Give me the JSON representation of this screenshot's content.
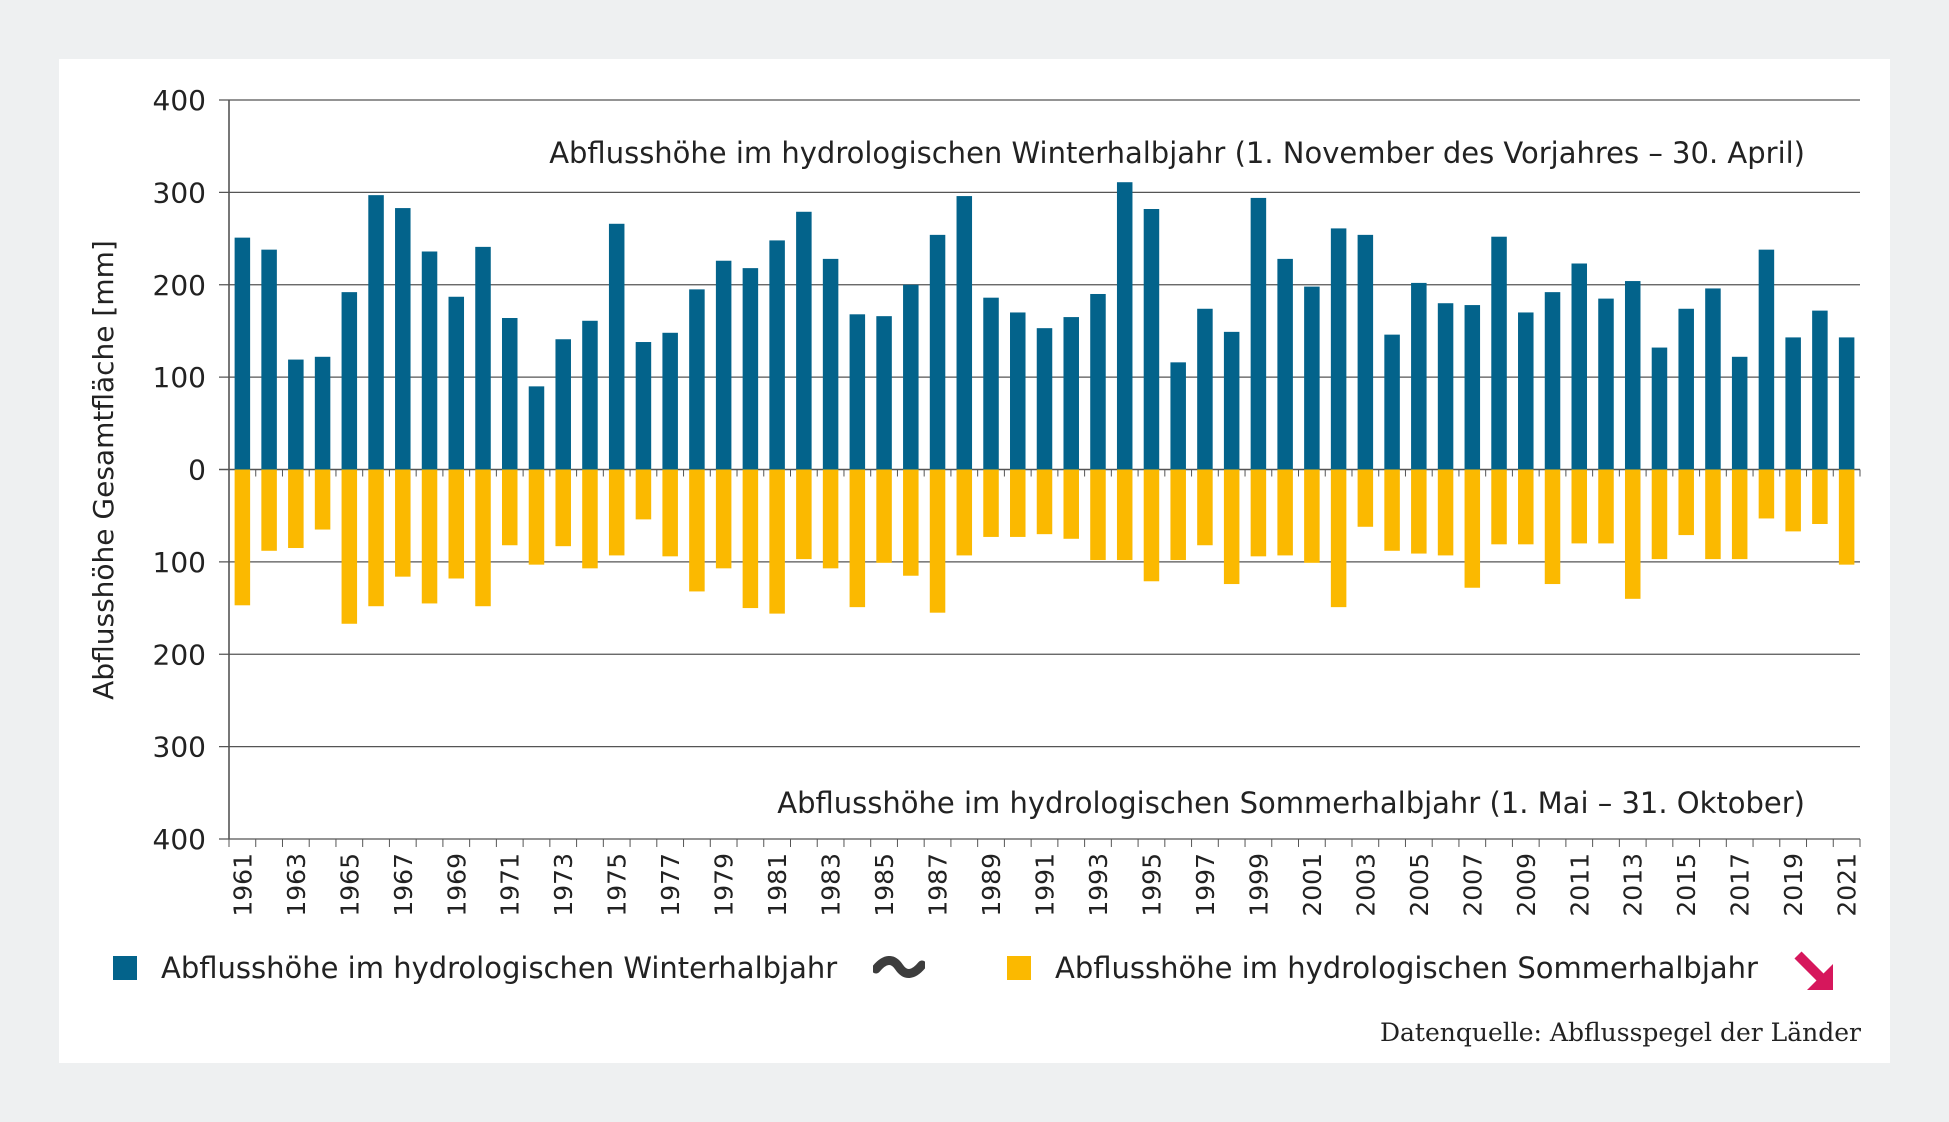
{
  "colors": {
    "winter": "#03638b",
    "summer": "#fbb900",
    "trend_winter": "#3d3d3d",
    "trend_summer": "#d6175c",
    "grid": "#555555"
  },
  "chart_data": {
    "type": "bar",
    "ylabel": "Abflusshöhe Gesamtfläche  [mm]",
    "ylim": [
      -400,
      400
    ],
    "y_ticks": [
      400,
      300,
      200,
      100,
      0,
      100,
      200,
      300,
      400
    ],
    "grid": true,
    "annotation_winter": "Abflusshöhe im hydrologischen Winterhalbjahr (1. November des Vorjahres – 30. April)",
    "annotation_summer": "Abflusshöhe im hydrologischen Sommerhalbjahr (1. Mai – 31. Oktober)",
    "x": [
      1961,
      1962,
      1963,
      1964,
      1965,
      1966,
      1967,
      1968,
      1969,
      1970,
      1971,
      1972,
      1973,
      1974,
      1975,
      1976,
      1977,
      1978,
      1979,
      1980,
      1981,
      1982,
      1983,
      1984,
      1985,
      1986,
      1987,
      1988,
      1989,
      1990,
      1991,
      1992,
      1993,
      1994,
      1995,
      1996,
      1997,
      1998,
      1999,
      2000,
      2001,
      2002,
      2003,
      2004,
      2005,
      2006,
      2007,
      2008,
      2009,
      2010,
      2011,
      2012,
      2013,
      2014,
      2015,
      2016,
      2017,
      2018,
      2019,
      2020,
      2021
    ],
    "x_tick_labels": [
      "1961",
      "1963",
      "1965",
      "1967",
      "1969",
      "1971",
      "1973",
      "1975",
      "1977",
      "1979",
      "1981",
      "1983",
      "1985",
      "1987",
      "1989",
      "1991",
      "1993",
      "1995",
      "1997",
      "1999",
      "2001",
      "2003",
      "2005",
      "2007",
      "2009",
      "2011",
      "2013",
      "2015",
      "2017",
      "2019",
      "2021"
    ],
    "series": [
      {
        "name": "Abflusshöhe im hydrologischen Winterhalbjahr",
        "values": [
          251,
          238,
          119,
          122,
          192,
          297,
          283,
          236,
          187,
          241,
          164,
          90,
          141,
          161,
          266,
          138,
          148,
          195,
          226,
          218,
          248,
          279,
          228,
          168,
          166,
          200,
          254,
          296,
          186,
          170,
          153,
          165,
          190,
          311,
          282,
          116,
          174,
          149,
          294,
          228,
          198,
          261,
          254,
          146,
          202,
          180,
          178,
          252,
          170,
          192,
          223,
          185,
          204,
          132,
          174,
          196,
          122,
          238,
          143,
          172,
          143
        ]
      },
      {
        "name": "Abflusshöhe im hydrologischen Sommerhalbjahr",
        "values": [
          -147,
          -88,
          -85,
          -65,
          -167,
          -148,
          -116,
          -145,
          -118,
          -148,
          -82,
          -103,
          -83,
          -107,
          -93,
          -54,
          -94,
          -132,
          -107,
          -150,
          -156,
          -97,
          -107,
          -149,
          -101,
          -115,
          -155,
          -93,
          -73,
          -73,
          -70,
          -75,
          -98,
          -98,
          -121,
          -98,
          -82,
          -124,
          -94,
          -93,
          -101,
          -149,
          -62,
          -88,
          -91,
          -93,
          -128,
          -81,
          -81,
          -124,
          -80,
          -80,
          -140,
          -97,
          -71,
          -97,
          -97,
          -53,
          -67,
          -59,
          -103
        ]
      }
    ]
  },
  "legend": {
    "winter_label": "Abflusshöhe im hydrologischen Winterhalbjahr",
    "summer_label": "Abflusshöhe im hydrologischen Sommerhalbjahr",
    "winter_trend_icon": "wave-trend-icon",
    "summer_trend_icon": "arrow-down-right-icon"
  },
  "source": "Datenquelle: Abflusspegel der Länder"
}
